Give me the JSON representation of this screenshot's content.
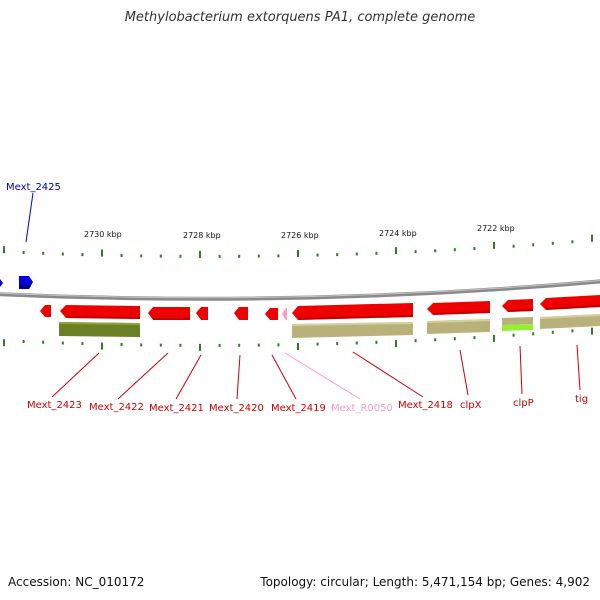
{
  "title": "Methylobacterium extorquens PA1, complete genome",
  "footer": {
    "accession_label": "Accession:",
    "accession": "NC_010172",
    "topology_label": "Topology:",
    "topology": "circular",
    "length_label": "Length:",
    "length": "5,471,154 bp",
    "genes_label": "Genes:",
    "genes": "4,902"
  },
  "colors": {
    "backbone": "#8a8a8a",
    "gene": "#ee0000",
    "gene_label": "#cc0000",
    "rna": "#ff99cc",
    "blue_gene": "#0000dd",
    "tick": "#2e7d1a",
    "olive_dark": "#6b7f24",
    "olive_light": "#b8b27a",
    "lime": "#99ee33"
  },
  "scale": {
    "unit": "kbp",
    "labels": [
      "2730 kbp",
      "2728 kbp",
      "2726 kbp",
      "2724 kbp",
      "2722 kbp"
    ]
  },
  "gene_labels": {
    "above": [
      "Mext_2425"
    ],
    "below": [
      "Mext_2423",
      "Mext_2422",
      "Mext_2421",
      "Mext_2420",
      "Mext_2419",
      "Mext_R0050",
      "Mext_2418",
      "clpX",
      "clpP",
      "tig"
    ]
  }
}
